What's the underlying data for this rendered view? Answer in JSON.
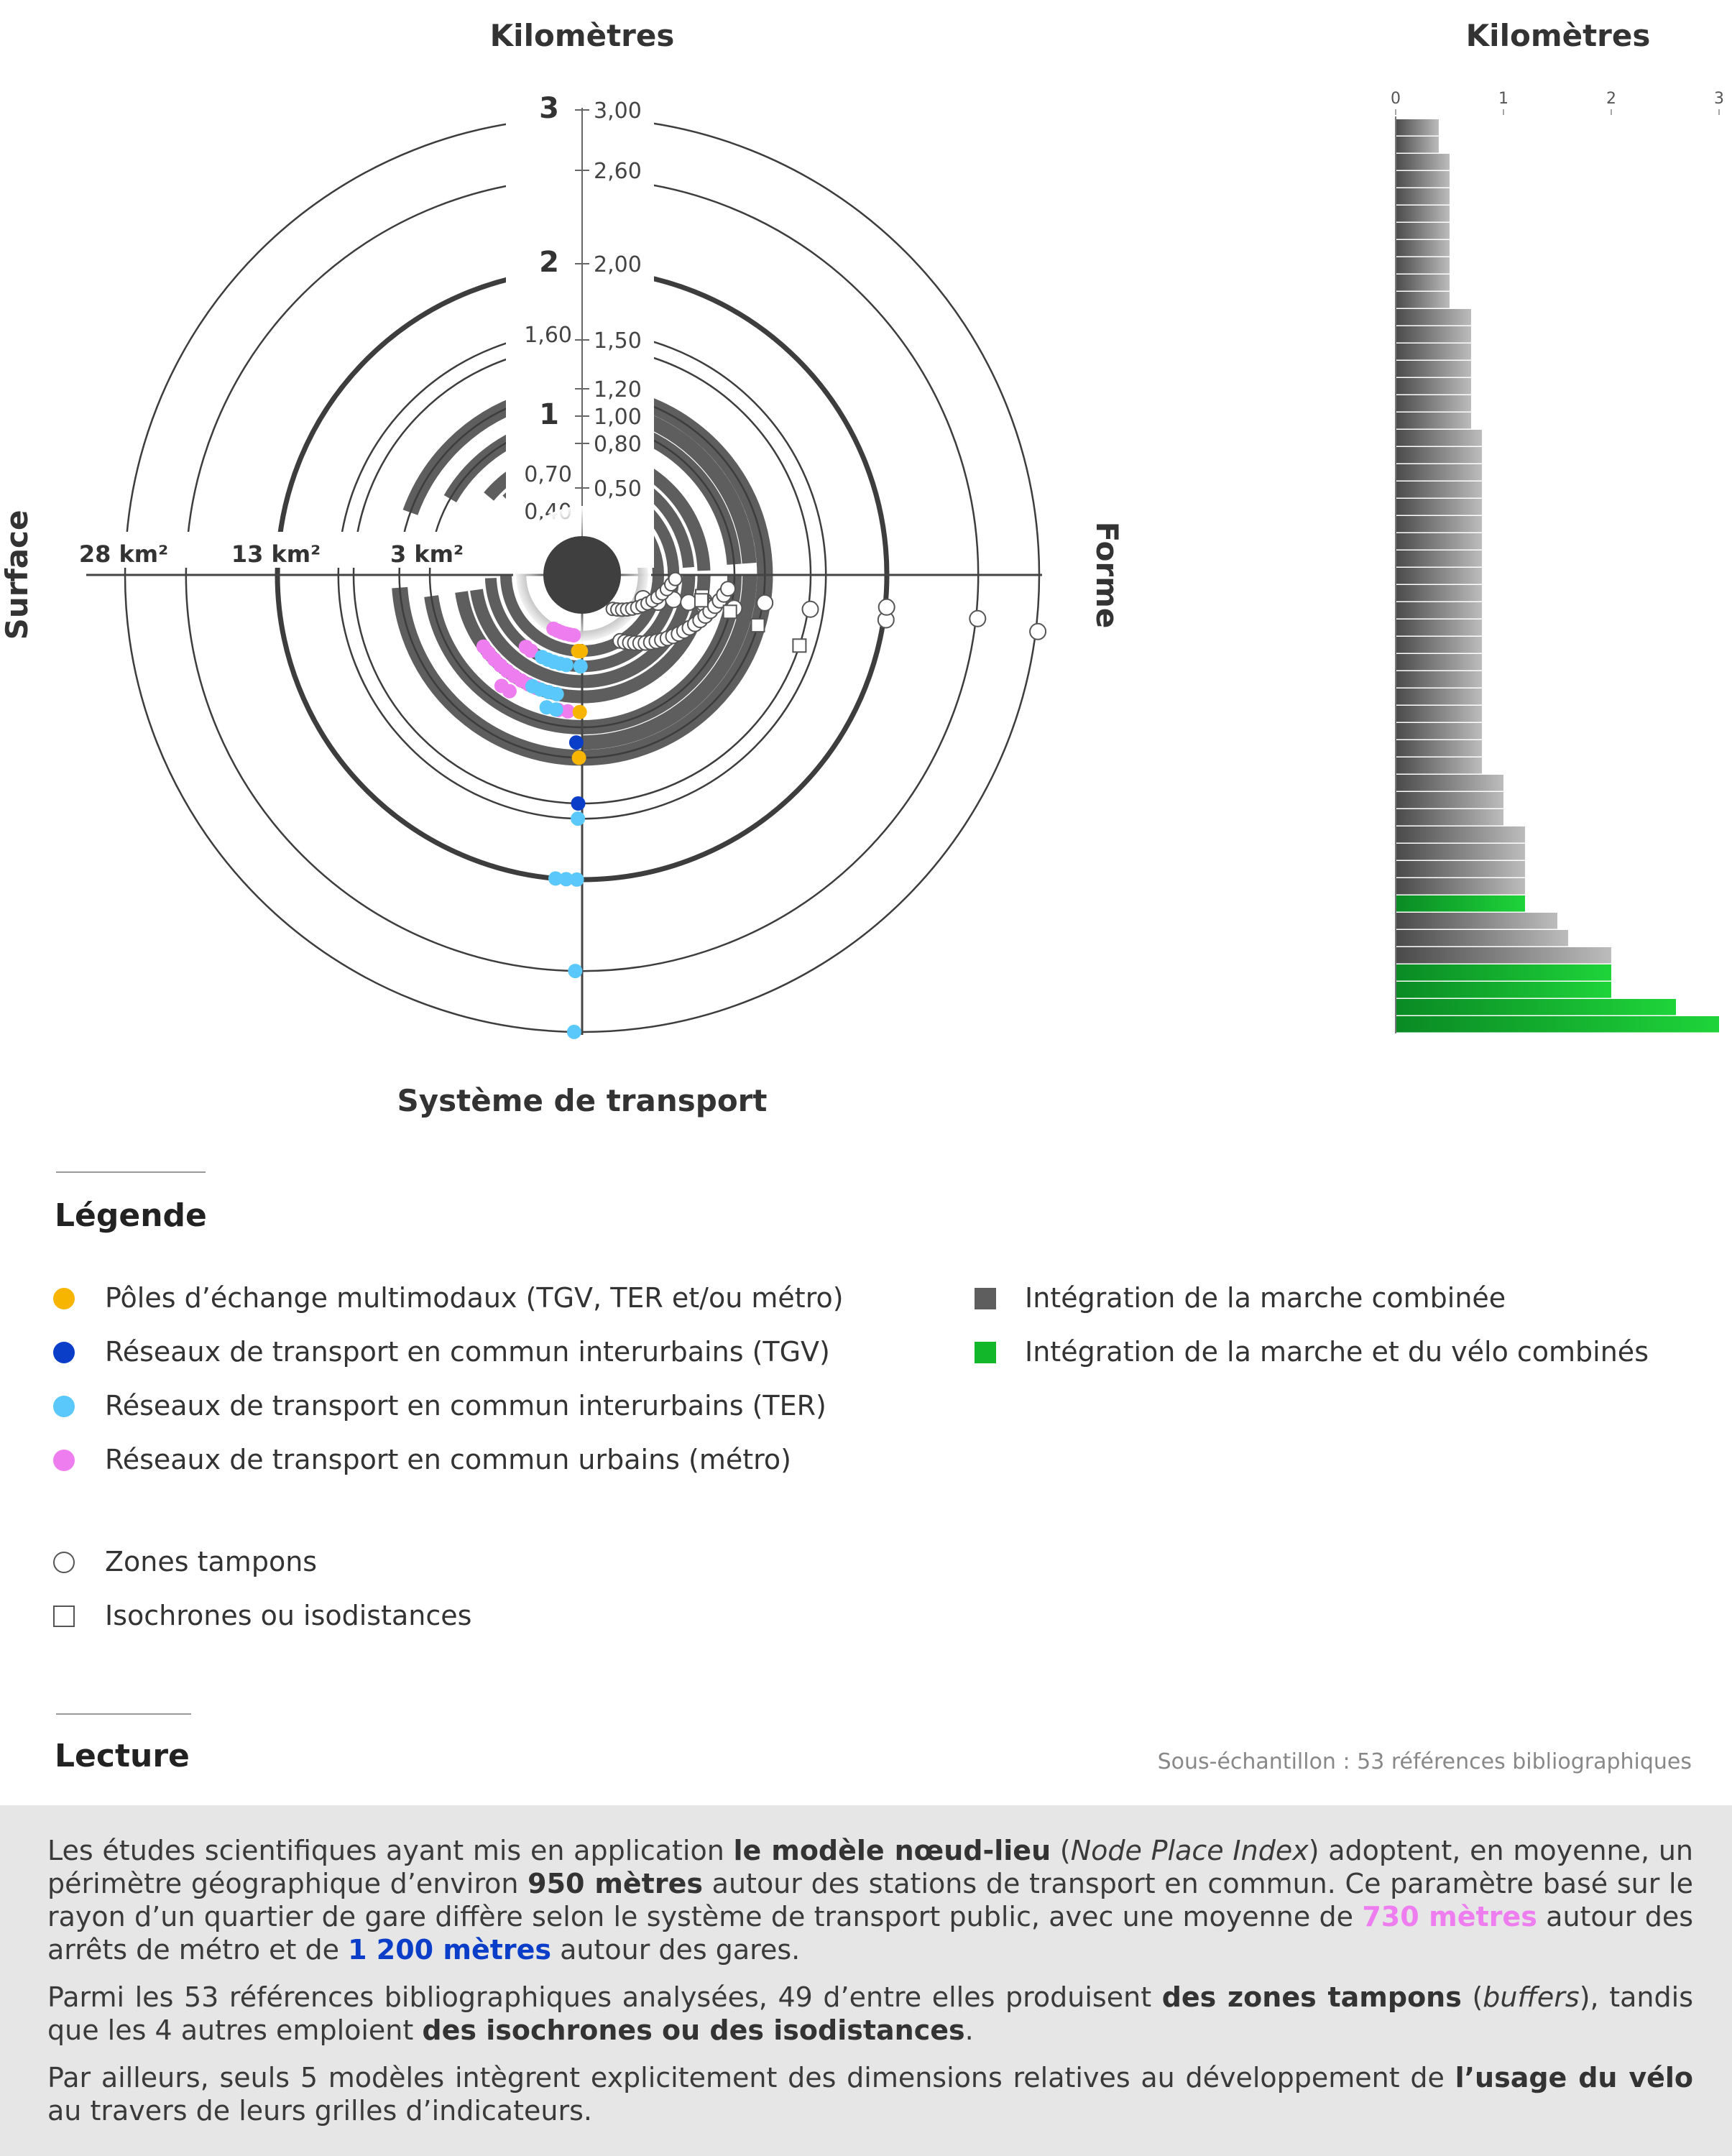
{
  "chart_data": [
    {
      "type": "polar",
      "top_label": "Kilomètres",
      "left_label": "Surface",
      "right_label": "Forme",
      "bottom_label": "Système de transport",
      "radial_major_ticks": [
        "3",
        "2",
        "1"
      ],
      "radial_value_labels_right": [
        "3,00",
        "2,60",
        "2,00",
        "1,50",
        "1,20",
        "1,00",
        "0,80",
        "0,50"
      ],
      "radial_value_labels_left": [
        "1,60",
        "0,70",
        "0,40"
      ],
      "surface_labels": [
        "28 km²",
        "13 km²",
        "3 km²"
      ],
      "circle_radii_km": [
        3.0,
        2.6,
        2.0,
        1.6,
        1.5,
        1.2,
        1.0
      ],
      "quadrant_arc_radii_km": [
        1.2,
        1.1,
        1.0,
        0.8,
        0.7,
        0.6,
        0.5,
        0.4
      ],
      "forme_buffers_km": [
        0.4,
        0.5,
        0.5,
        0.6,
        0.7,
        0.8,
        0.8,
        0.8,
        1.0,
        1.2,
        1.5,
        2.0,
        2.0,
        2.6,
        3.0
      ],
      "forme_isochrones_km": [
        0.8,
        0.8,
        1.0,
        1.2,
        1.5
      ],
      "transport_points": [
        {
          "category": "metro",
          "r_km": 0.4,
          "deg": [
            8,
            12,
            16,
            20,
            24,
            28
          ]
        },
        {
          "category": "metro",
          "r_km": 0.6,
          "deg": [
            34,
            38
          ]
        },
        {
          "category": "metro",
          "r_km": 0.8,
          "deg": [
            22,
            26,
            30,
            34,
            38,
            42,
            46,
            50,
            54
          ]
        },
        {
          "category": "metro",
          "r_km": 0.9,
          "deg": [
            6,
            10,
            32,
            36
          ]
        },
        {
          "category": "ter",
          "r_km": 0.6,
          "deg": [
            1,
            10,
            14,
            18,
            22,
            26
          ]
        },
        {
          "category": "ter",
          "r_km": 0.8,
          "deg": [
            12,
            16,
            20,
            24
          ]
        },
        {
          "category": "ter",
          "r_km": 0.9,
          "deg": [
            11,
            15
          ]
        },
        {
          "category": "ter",
          "r_km": 1.6,
          "deg": [
            1
          ]
        },
        {
          "category": "ter",
          "r_km": 2.0,
          "deg": [
            1,
            3,
            5
          ]
        },
        {
          "category": "ter",
          "r_km": 2.6,
          "deg": [
            1
          ]
        },
        {
          "category": "ter",
          "r_km": 3.0,
          "deg": [
            1
          ]
        },
        {
          "category": "tgv",
          "r_km": 1.1,
          "deg": [
            2
          ]
        },
        {
          "category": "tgv",
          "r_km": 1.5,
          "deg": [
            1
          ]
        },
        {
          "category": "multimodal",
          "r_km": 0.5,
          "deg": [
            1,
            3
          ]
        },
        {
          "category": "multimodal",
          "r_km": 0.9,
          "deg": [
            1
          ]
        },
        {
          "category": "multimodal",
          "r_km": 1.2,
          "deg": [
            1
          ]
        }
      ]
    },
    {
      "type": "bar",
      "orientation": "horizontal",
      "title": "Kilomètres",
      "xlim": [
        0,
        3
      ],
      "x_ticks": [
        "0",
        "1",
        "2",
        "3"
      ],
      "values": [
        0.4,
        0.4,
        0.5,
        0.5,
        0.5,
        0.5,
        0.5,
        0.5,
        0.5,
        0.5,
        0.5,
        0.7,
        0.7,
        0.7,
        0.7,
        0.7,
        0.7,
        0.7,
        0.8,
        0.8,
        0.8,
        0.8,
        0.8,
        0.8,
        0.8,
        0.8,
        0.8,
        0.8,
        0.8,
        0.8,
        0.8,
        0.8,
        0.8,
        0.8,
        0.8,
        0.8,
        0.8,
        0.8,
        1.0,
        1.0,
        1.0,
        1.2,
        1.2,
        1.2,
        1.2,
        1.2,
        1.5,
        1.6,
        2.0,
        2.0,
        2.0,
        2.6,
        3.0
      ],
      "walk_bike": [
        false,
        false,
        false,
        false,
        false,
        false,
        false,
        false,
        false,
        false,
        false,
        false,
        false,
        false,
        false,
        false,
        false,
        false,
        false,
        false,
        false,
        false,
        false,
        false,
        false,
        false,
        false,
        false,
        false,
        false,
        false,
        false,
        false,
        false,
        false,
        false,
        false,
        false,
        false,
        false,
        false,
        false,
        false,
        false,
        false,
        true,
        false,
        false,
        false,
        true,
        true,
        true,
        true
      ]
    }
  ],
  "colors": {
    "multimodal": "#f7b500",
    "tgv": "#0a3ec8",
    "ter": "#5ac8fa",
    "metro": "#ee7ef0",
    "dark": "#5e5e5e",
    "green": "#12b82a"
  },
  "legend": {
    "title": "Légende",
    "items": [
      {
        "label": "Pôles d’échange multimodaux (TGV, TER et/ou métro)",
        "marker": "circle",
        "color": "#f7b500"
      },
      {
        "label": "Réseaux de transport en commun interurbains (TGV)",
        "marker": "circle",
        "color": "#0a3ec8"
      },
      {
        "label": "Réseaux de transport en commun interurbains (TER)",
        "marker": "circle",
        "color": "#5ac8fa"
      },
      {
        "label": "Réseaux de transport en commun urbains (métro)",
        "marker": "circle",
        "color": "#ee7ef0"
      },
      {
        "label": "Zones tampons",
        "marker": "circle-outline",
        "color": "#555555"
      },
      {
        "label": "Isochrones ou isodistances",
        "marker": "square-outline",
        "color": "#555555"
      },
      {
        "label": "Intégration de la marche combinée",
        "marker": "square",
        "color": "#5e5e5e"
      },
      {
        "label": "Intégration de la marche et du vélo combinés",
        "marker": "square",
        "color": "#12b82a"
      }
    ]
  },
  "lecture": {
    "title": "Lecture",
    "sample": "Sous-échantillon : 53 références bibliographiques",
    "p1": {
      "t1": "Les études scientifiques ayant mis en application ",
      "b1": "le modèle nœud-lieu",
      "t2": " (",
      "i1": "Node Place Index",
      "t3": ") adoptent, en moyenne, un périmètre géographique d’environ ",
      "b2": "950 mètres",
      "t4": " autour des stations de transport en commun. Ce paramètre basé sur le rayon d’un quartier de gare diffère selon le système de transport public, avec une moyenne de ",
      "pink": "730 mètres",
      "t5": " autour des arrêts de métro et de ",
      "blue": "1 200 mètres",
      "t6": " autour des gares."
    },
    "p2": {
      "t1": "Parmi les 53 références bibliographiques analysées, 49 d’entre elles produisent ",
      "b1": "des zones tampons",
      "t2": " (",
      "i1": "buffers",
      "t3": "), tandis que les 4 autres emploient ",
      "b2": "des isochrones ou des isodistances",
      "t4": "."
    },
    "p3": {
      "t1": "Par ailleurs, seuls 5 modèles intègrent explicitement des dimensions relatives au développement de ",
      "b1": "l’usage du vélo",
      "t2": " au travers de leurs grilles d’indicateurs."
    }
  }
}
